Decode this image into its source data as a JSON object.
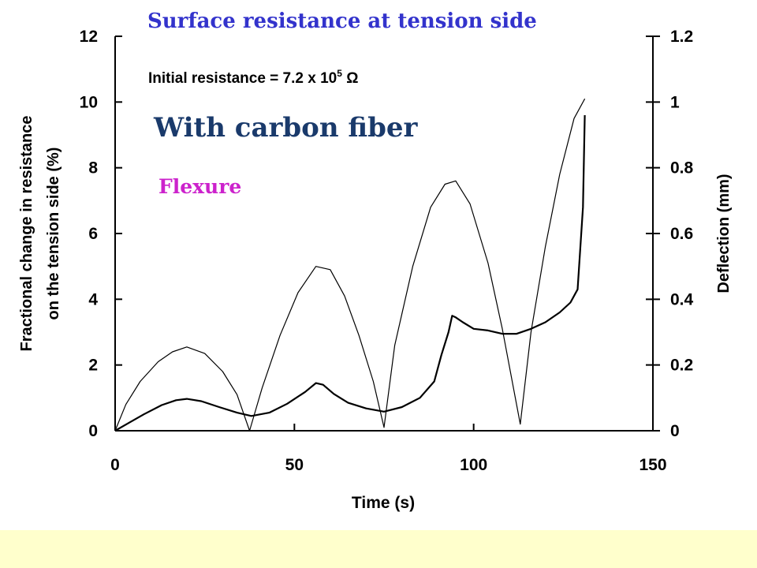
{
  "slide": {
    "title": "Surface resistance at tension side",
    "initial_resistance_prefix": "Initial resistance = 7.2 x 10",
    "initial_resistance_exp": "5",
    "initial_resistance_unit": "Ω",
    "material_label": "With carbon fiber",
    "test_label": "Flexure"
  },
  "colors": {
    "title": "#3333cc",
    "material_label": "#1a3a6b",
    "test_label": "#cc22cc",
    "bottom_band": "#ffffcc"
  },
  "chart_data": {
    "type": "line",
    "xlabel": "Time (s)",
    "ylabel_left": [
      "Fractional change in resistance",
      "on the tension side (%)"
    ],
    "ylabel_right": "Deflection (mm)",
    "xlim": [
      0,
      150
    ],
    "ylim_left": [
      0,
      12
    ],
    "ylim_right": [
      0,
      1.2
    ],
    "x_ticks": [
      "0",
      "50",
      "100",
      "150"
    ],
    "y_left_ticks": [
      "0",
      "2",
      "4",
      "6",
      "8",
      "10",
      "12"
    ],
    "y_right_ticks": [
      "0",
      "0.2",
      "0.4",
      "0.6",
      "0.8",
      "1",
      "1.2"
    ],
    "grid": false,
    "series": [
      {
        "axis": "right",
        "line_width": 1.2,
        "x": [
          0,
          3,
          7,
          12,
          16,
          20,
          25,
          30,
          34,
          37.5,
          41,
          46,
          51,
          56,
          60,
          64,
          68,
          72,
          75,
          78,
          83,
          88,
          92,
          95,
          99,
          104,
          108,
          113,
          116,
          120,
          124,
          128,
          131
        ],
        "y": [
          0,
          0.08,
          0.15,
          0.21,
          0.24,
          0.255,
          0.235,
          0.18,
          0.11,
          0.0,
          0.13,
          0.29,
          0.42,
          0.5,
          0.49,
          0.41,
          0.29,
          0.15,
          0.01,
          0.26,
          0.5,
          0.68,
          0.75,
          0.76,
          0.69,
          0.51,
          0.31,
          0.02,
          0.3,
          0.56,
          0.78,
          0.95,
          1.01
        ]
      },
      {
        "axis": "left",
        "line_width": 2.2,
        "x": [
          0,
          4,
          8,
          13,
          17,
          20,
          24,
          29,
          34,
          38,
          43,
          48,
          53,
          56,
          58,
          61,
          65,
          70,
          75,
          80,
          85,
          89,
          91,
          93,
          94,
          95,
          97,
          100,
          104,
          108,
          112,
          116,
          120,
          124,
          127,
          129,
          130.5,
          131
        ],
        "y": [
          0,
          0.25,
          0.5,
          0.78,
          0.93,
          0.97,
          0.9,
          0.72,
          0.55,
          0.45,
          0.55,
          0.82,
          1.18,
          1.45,
          1.4,
          1.12,
          0.85,
          0.68,
          0.58,
          0.72,
          1.0,
          1.5,
          2.3,
          3.0,
          3.5,
          3.45,
          3.3,
          3.1,
          3.05,
          2.95,
          2.95,
          3.1,
          3.3,
          3.6,
          3.9,
          4.3,
          6.8,
          9.6
        ]
      }
    ]
  }
}
